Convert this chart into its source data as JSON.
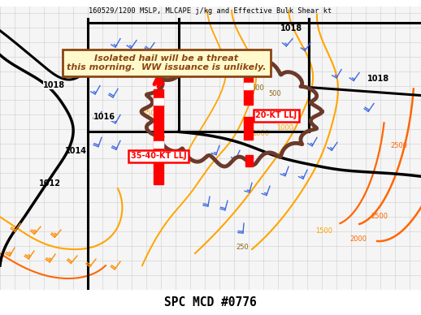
{
  "title_top": "160529/1200 MSLP, MLCAPE j/kg and Effective Bulk Shear kt",
  "title_bottom": "SPC MCD #0776",
  "annotation_text": "Isolated hail will be a threat\nthis morning.  WW issuance is unlikely.",
  "annotation_box_color": "#8B4513",
  "annotation_text_color": "#8B4513",
  "annotation_bg": "#FFFACD",
  "label_llj1": "35-40-KT LLJ",
  "label_llj2": "20-KT LLJ",
  "label_color": "red",
  "bg_color": "#ffffff",
  "map_bg": "#f5f5f5",
  "isobar_color": "black",
  "cape_color_light": "#FFA500",
  "cape_color_dark": "#FF6600",
  "shear_color": "#8B6914",
  "wind_blue": "#4169E1",
  "wind_orange": "#FF8C00",
  "mcd_color": "#6B3A2A",
  "figsize": [
    5.18,
    3.88
  ],
  "dpi": 100
}
